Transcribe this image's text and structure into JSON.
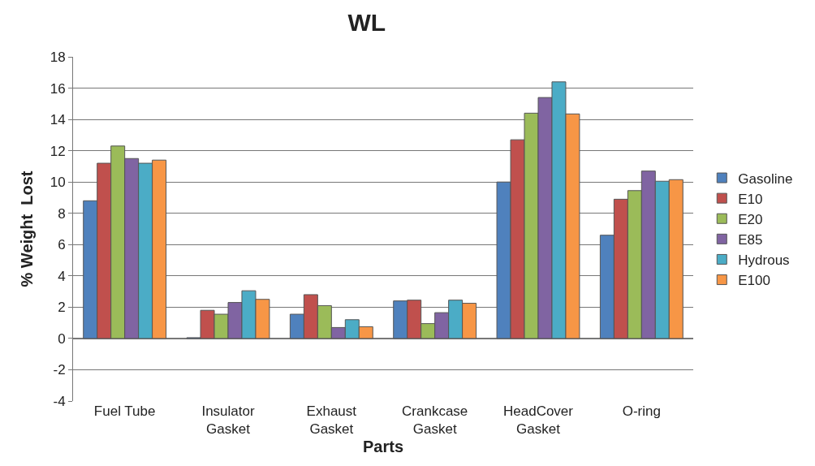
{
  "chart_data": {
    "type": "bar",
    "title": "WL",
    "xlabel": "Parts",
    "ylabel": "% Weight  Lost",
    "categories": [
      "Fuel Tube",
      "Insulator\nGasket",
      "Exhaust\nGasket",
      "Crankcase\nGasket",
      "HeadCover\nGasket",
      "O-ring"
    ],
    "series": [
      {
        "name": "Gasoline",
        "color": "#4f81bd",
        "values": [
          8.8,
          0.05,
          1.55,
          2.4,
          10.0,
          6.6
        ]
      },
      {
        "name": "E10",
        "color": "#c0504d",
        "values": [
          11.2,
          1.8,
          2.8,
          2.45,
          12.7,
          8.9
        ]
      },
      {
        "name": "E20",
        "color": "#9bbb59",
        "values": [
          12.3,
          1.55,
          2.1,
          0.95,
          14.4,
          9.45
        ]
      },
      {
        "name": "E85",
        "color": "#8064a2",
        "values": [
          11.5,
          2.3,
          0.7,
          1.65,
          15.4,
          10.7
        ]
      },
      {
        "name": "Hydrous",
        "color": "#4bacc6",
        "values": [
          11.2,
          3.05,
          1.2,
          2.45,
          16.4,
          10.05
        ]
      },
      {
        "name": "E100",
        "color": "#f79646",
        "values": [
          11.4,
          2.5,
          0.75,
          2.25,
          14.35,
          10.15
        ]
      }
    ],
    "ylim": [
      -4,
      18
    ],
    "yticks": [
      -4,
      -2,
      0,
      2,
      4,
      6,
      8,
      10,
      12,
      14,
      16,
      18
    ],
    "grid": "y",
    "legend": "right"
  }
}
